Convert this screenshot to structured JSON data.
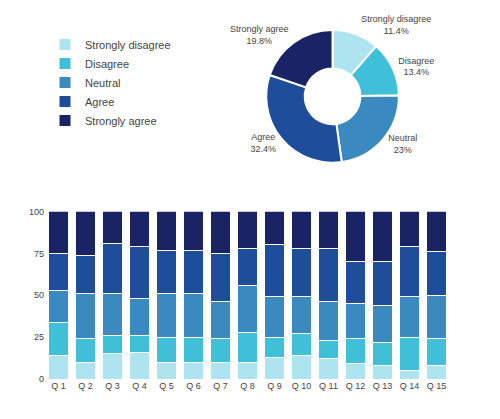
{
  "chart_data": [
    {
      "type": "donut",
      "categories": [
        "Strongly disagree",
        "Disagree",
        "Neutral",
        "Agree",
        "Strongly agree"
      ],
      "values": [
        11.4,
        13.4,
        23.0,
        32.4,
        19.8
      ],
      "value_labels": [
        "11.4%",
        "13.4%",
        "23%",
        "32.4%",
        "19.8%"
      ],
      "colors": [
        "#aee4f0",
        "#40c0d8",
        "#3a8abf",
        "#1e4d9a",
        "#1a2363"
      ],
      "data_labels": true
    },
    {
      "type": "bar",
      "categories": [
        "Q 1",
        "Q 2",
        "Q 3",
        "Q 4",
        "Q 5",
        "Q 6",
        "Q 7",
        "Q 8",
        "Q 9",
        "Q 10",
        "Q 11",
        "Q 12",
        "Q 13",
        "Q 14",
        "Q 15"
      ],
      "series": [
        {
          "name": "Strongly disagree",
          "color": "#aee4f0",
          "values": [
            14,
            10,
            15,
            16,
            10,
            10,
            10,
            10,
            13,
            14,
            12,
            9,
            8,
            5,
            8
          ]
        },
        {
          "name": "Disagree",
          "color": "#40c0d8",
          "values": [
            20,
            14,
            11,
            10,
            15,
            15,
            14,
            18,
            12,
            13,
            11,
            15,
            14,
            20,
            16
          ]
        },
        {
          "name": "Neutral",
          "color": "#3a8abf",
          "values": [
            19,
            27,
            25,
            22,
            26,
            26,
            22,
            28,
            24,
            22,
            23,
            21,
            22,
            24,
            26
          ]
        },
        {
          "name": "Agree",
          "color": "#1e4d9a",
          "values": [
            22,
            23,
            30,
            31,
            26,
            26,
            29,
            22,
            31,
            29,
            32,
            25,
            26,
            30,
            26
          ]
        },
        {
          "name": "Strongly agree",
          "color": "#1a2363",
          "values": [
            25,
            26,
            19,
            21,
            23,
            23,
            25,
            22,
            20,
            22,
            22,
            30,
            30,
            21,
            24
          ]
        }
      ],
      "stacked": true,
      "ylim": [
        0,
        100
      ],
      "yticks": [
        0,
        25,
        50,
        75,
        100
      ],
      "grid": false,
      "legend": "upper left"
    }
  ]
}
